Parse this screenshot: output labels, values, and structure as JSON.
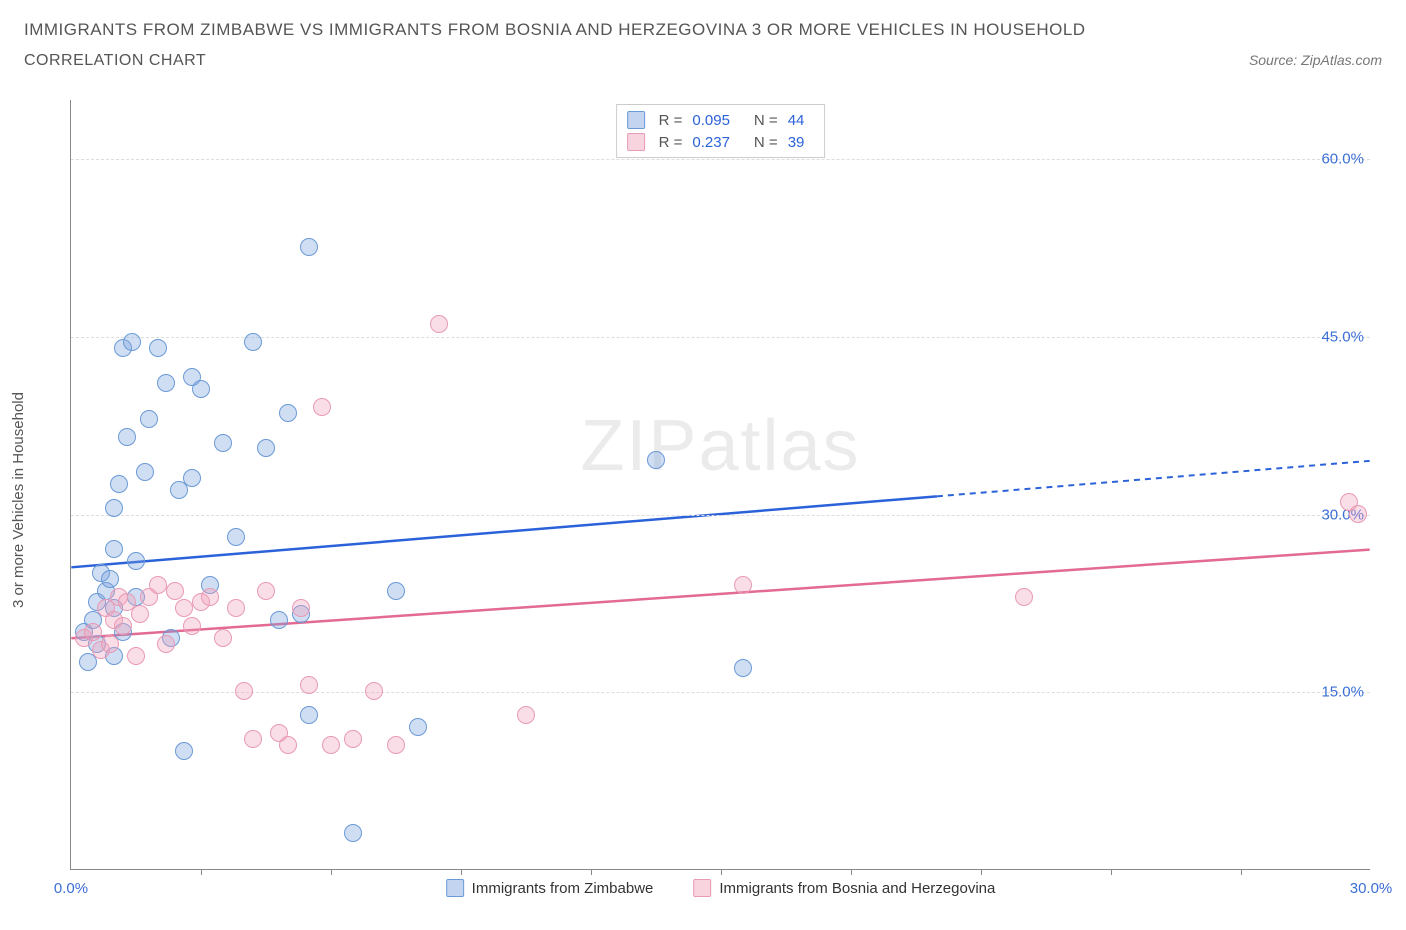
{
  "header": {
    "title": "IMMIGRANTS FROM ZIMBABWE VS IMMIGRANTS FROM BOSNIA AND HERZEGOVINA 3 OR MORE VEHICLES IN HOUSEHOLD",
    "subtitle": "CORRELATION CHART",
    "source": "Source: ZipAtlas.com"
  },
  "chart": {
    "type": "scatter",
    "xlabel_implicit": "Percent",
    "ylabel": "3 or more Vehicles in Household",
    "xlim": [
      0,
      30
    ],
    "ylim": [
      0,
      65
    ],
    "x_ticks_minor": [
      3,
      6,
      9,
      12,
      15,
      18,
      21,
      24,
      27
    ],
    "x_tick_labels": [
      {
        "pos": 0,
        "label": "0.0%"
      },
      {
        "pos": 30,
        "label": "30.0%"
      }
    ],
    "y_grid": [
      15,
      30,
      45,
      60
    ],
    "y_tick_labels": [
      {
        "pos": 15,
        "label": "15.0%"
      },
      {
        "pos": 30,
        "label": "30.0%"
      },
      {
        "pos": 45,
        "label": "45.0%"
      },
      {
        "pos": 60,
        "label": "60.0%"
      }
    ],
    "background_color": "#ffffff",
    "grid_color": "#dddddd",
    "axis_color": "#888888",
    "tick_label_color": "#3b6fd6",
    "watermark": {
      "bold": "ZIP",
      "thin": "atlas"
    },
    "series": [
      {
        "id": "zimbabwe",
        "label": "Immigrants from Zimbabwe",
        "color_fill": "rgba(120,160,220,0.35)",
        "color_stroke": "#6a9ad6",
        "trend_color": "#2b62d9",
        "R": "0.095",
        "N": "44",
        "trend": {
          "x1": 0,
          "y1": 25.5,
          "x2": 20,
          "y2": 31.5,
          "x2_dash": 30,
          "y2_dash": 34.5
        },
        "points": [
          [
            0.3,
            20
          ],
          [
            0.4,
            17.5
          ],
          [
            0.5,
            21
          ],
          [
            0.6,
            19
          ],
          [
            0.6,
            22.5
          ],
          [
            0.7,
            25
          ],
          [
            0.8,
            23.5
          ],
          [
            0.9,
            24.5
          ],
          [
            1.0,
            30.5
          ],
          [
            1.0,
            18
          ],
          [
            1.1,
            32.5
          ],
          [
            1.2,
            44
          ],
          [
            1.3,
            36.5
          ],
          [
            1.4,
            44.5
          ],
          [
            1.5,
            26
          ],
          [
            1.7,
            33.5
          ],
          [
            1.8,
            38
          ],
          [
            2.0,
            44
          ],
          [
            2.2,
            41
          ],
          [
            2.3,
            19.5
          ],
          [
            2.5,
            32
          ],
          [
            2.6,
            10
          ],
          [
            2.8,
            33
          ],
          [
            2.8,
            41.5
          ],
          [
            3.0,
            40.5
          ],
          [
            3.2,
            24
          ],
          [
            3.5,
            36
          ],
          [
            3.8,
            28
          ],
          [
            4.2,
            44.5
          ],
          [
            4.5,
            35.5
          ],
          [
            4.8,
            21
          ],
          [
            5.0,
            38.5
          ],
          [
            5.3,
            21.5
          ],
          [
            5.5,
            52.5
          ],
          [
            5.5,
            13
          ],
          [
            6.5,
            3
          ],
          [
            7.5,
            23.5
          ],
          [
            8.0,
            12
          ],
          [
            13.5,
            34.5
          ],
          [
            15.5,
            17
          ],
          [
            1.0,
            22
          ],
          [
            1.2,
            20
          ],
          [
            1.5,
            23
          ],
          [
            1.0,
            27
          ]
        ]
      },
      {
        "id": "bosnia",
        "label": "Immigrants from Bosnia and Herzegovina",
        "color_fill": "rgba(240,160,185,0.35)",
        "color_stroke": "#e89ab5",
        "trend_color": "#e26a93",
        "R": "0.237",
        "N": "39",
        "trend": {
          "x1": 0,
          "y1": 19.5,
          "x2": 30,
          "y2": 27
        },
        "points": [
          [
            0.3,
            19.5
          ],
          [
            0.5,
            20
          ],
          [
            0.7,
            18.5
          ],
          [
            0.8,
            22
          ],
          [
            0.9,
            19
          ],
          [
            1.0,
            21
          ],
          [
            1.1,
            23
          ],
          [
            1.2,
            20.5
          ],
          [
            1.3,
            22.5
          ],
          [
            1.5,
            18
          ],
          [
            1.6,
            21.5
          ],
          [
            1.8,
            23
          ],
          [
            2.0,
            24
          ],
          [
            2.2,
            19
          ],
          [
            2.4,
            23.5
          ],
          [
            2.6,
            22
          ],
          [
            2.8,
            20.5
          ],
          [
            3.0,
            22.5
          ],
          [
            3.2,
            23
          ],
          [
            3.5,
            19.5
          ],
          [
            3.8,
            22
          ],
          [
            4.0,
            15
          ],
          [
            4.2,
            11
          ],
          [
            4.5,
            23.5
          ],
          [
            4.8,
            11.5
          ],
          [
            5.0,
            10.5
          ],
          [
            5.3,
            22
          ],
          [
            5.5,
            15.5
          ],
          [
            5.8,
            39
          ],
          [
            6.0,
            10.5
          ],
          [
            6.5,
            11
          ],
          [
            7.0,
            15
          ],
          [
            7.5,
            10.5
          ],
          [
            8.5,
            46
          ],
          [
            10.5,
            13
          ],
          [
            15.5,
            24
          ],
          [
            22.0,
            23
          ],
          [
            29.5,
            31
          ],
          [
            29.7,
            30
          ]
        ]
      }
    ],
    "legend_bottom": [
      {
        "swatch": "blue",
        "label": "Immigrants from Zimbabwe"
      },
      {
        "swatch": "pink",
        "label": "Immigrants from Bosnia and Herzegovina"
      }
    ]
  }
}
